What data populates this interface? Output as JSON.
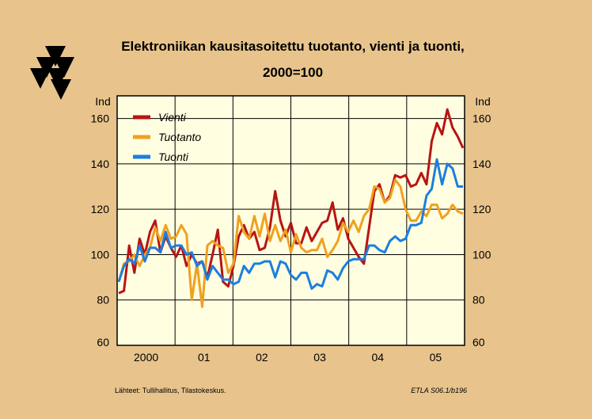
{
  "background": "#e8c48c",
  "plot_background": "#fffee0",
  "title_line1": "Elektroniikan kausitasoitettu tuotanto, vienti ja tuonti,",
  "title_line2": "2000=100",
  "source_note": "Lähteet:  Tullihallitus, Tilastokeskus.",
  "chart_code": "ETLA S06.1/b196",
  "logo_icon": "etla-triangle-logo-icon",
  "chart_data": {
    "type": "line",
    "ylabel_left": "Ind",
    "ylabel_right": "Ind",
    "ylim": [
      60,
      170
    ],
    "yticks": [
      60,
      80,
      100,
      120,
      140,
      160
    ],
    "x_start": "2000-01",
    "x_end": "2005-12",
    "xtick_labels": [
      "2000",
      "01",
      "02",
      "03",
      "04",
      "05"
    ],
    "grid": true,
    "legend_position": "top-left",
    "series": [
      {
        "name": "Vienti",
        "color": "#b81414",
        "values": [
          83,
          84,
          104,
          92,
          107,
          100,
          110,
          115,
          101,
          108,
          103,
          99,
          104,
          95,
          100,
          96,
          97,
          90,
          100,
          111,
          88,
          86,
          95,
          108,
          113,
          107,
          110,
          102,
          103,
          112,
          128,
          115,
          108,
          114,
          105,
          105,
          112,
          106,
          110,
          114,
          115,
          123,
          111,
          116,
          107,
          103,
          99,
          96,
          112,
          128,
          131,
          123,
          126,
          135,
          134,
          135,
          130,
          131,
          136,
          131,
          150,
          158,
          153,
          164,
          156,
          152,
          147
        ]
      },
      {
        "name": "Tuotanto",
        "color": "#f0a020",
        "values": [
          88,
          96,
          97,
          100,
          95,
          100,
          103,
          112,
          106,
          113,
          107,
          108,
          113,
          109,
          80,
          96,
          77,
          104,
          106,
          104,
          103,
          92,
          96,
          117,
          110,
          107,
          117,
          108,
          118,
          106,
          113,
          106,
          111,
          101,
          109,
          103,
          101,
          102,
          102,
          107,
          99,
          102,
          106,
          114,
          110,
          115,
          110,
          117,
          120,
          130,
          129,
          123,
          125,
          133,
          130,
          120,
          115,
          115,
          119,
          117,
          122,
          122,
          116,
          118,
          122,
          119,
          118
        ]
      },
      {
        "name": "Tuonti",
        "color": "#1c7ee0",
        "values": [
          88,
          95,
          98,
          96,
          104,
          97,
          103,
          103,
          101,
          110,
          103,
          104,
          104,
          100,
          101,
          95,
          97,
          89,
          95,
          92,
          89,
          89,
          87,
          88,
          95,
          92,
          96,
          96,
          97,
          97,
          90,
          97,
          96,
          91,
          89,
          92,
          92,
          85,
          87,
          86,
          93,
          92,
          89,
          94,
          97,
          98,
          98,
          98,
          104,
          104,
          102,
          101,
          106,
          108,
          106,
          107,
          113,
          113,
          114,
          126,
          129,
          142,
          131,
          140,
          138,
          130,
          130
        ]
      }
    ]
  }
}
